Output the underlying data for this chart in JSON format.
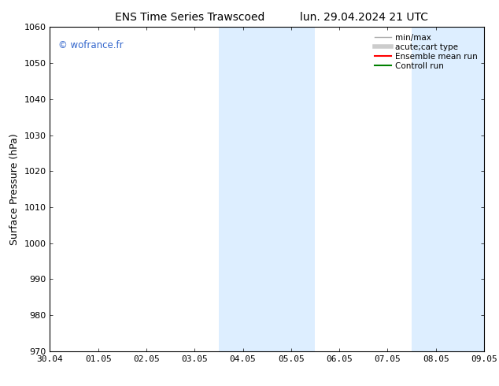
{
  "title_left": "ENS Time Series Trawscoed",
  "title_right": "lun. 29.04.2024 21 UTC",
  "ylabel": "Surface Pressure (hPa)",
  "ylim": [
    970,
    1060
  ],
  "yticks": [
    970,
    980,
    990,
    1000,
    1010,
    1020,
    1030,
    1040,
    1050,
    1060
  ],
  "xtick_labels": [
    "30.04",
    "01.05",
    "02.05",
    "03.05",
    "04.05",
    "05.05",
    "06.05",
    "07.05",
    "08.05",
    "09.05"
  ],
  "xtick_positions": [
    0,
    1,
    2,
    3,
    4,
    5,
    6,
    7,
    8,
    9
  ],
  "shaded_bands": [
    {
      "xstart": 3.5,
      "xend": 4.5
    },
    {
      "xstart": 4.5,
      "xend": 5.5
    },
    {
      "xstart": 7.5,
      "xend": 8.5
    },
    {
      "xstart": 8.5,
      "xend": 9.0
    }
  ],
  "shade_color": "#ddeeff",
  "watermark": "© wofrance.fr",
  "watermark_color": "#3366cc",
  "legend_items": [
    {
      "label": "min/max",
      "color": "#aaaaaa",
      "linestyle": "-",
      "linewidth": 1.0
    },
    {
      "label": "acute;cart type",
      "color": "#cccccc",
      "linestyle": "-",
      "linewidth": 4.0
    },
    {
      "label": "Ensemble mean run",
      "color": "red",
      "linestyle": "-",
      "linewidth": 1.5
    },
    {
      "label": "Controll run",
      "color": "green",
      "linestyle": "-",
      "linewidth": 1.5
    }
  ],
  "background_color": "#ffffff",
  "title_fontsize": 10,
  "tick_fontsize": 8,
  "ylabel_fontsize": 9
}
